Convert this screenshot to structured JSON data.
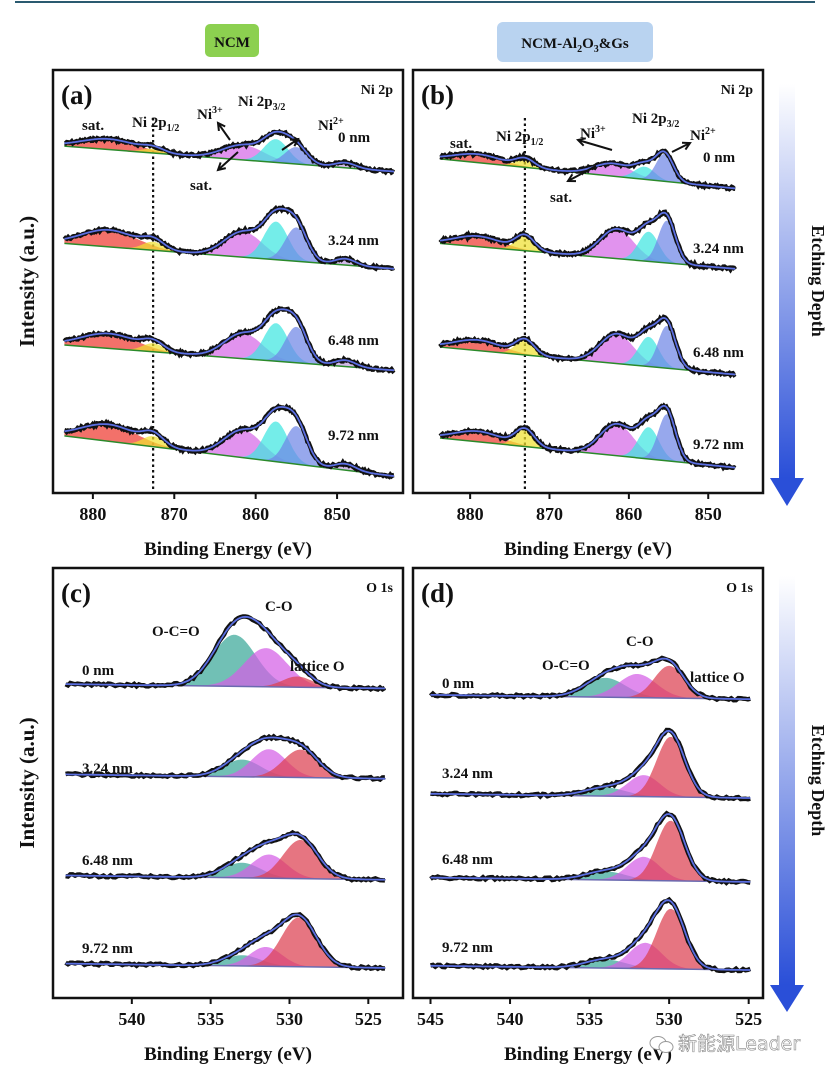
{
  "headers": {
    "left": "NCM",
    "right_main": "NCM-Al",
    "right_sub1": "2",
    "right_mid": "O",
    "right_sub2": "3",
    "right_tail": "&Gs",
    "left_color": "#8cd050",
    "right_color": "#b9d3f0"
  },
  "etching_label": "Etching Depth",
  "arrow_color": "#2a4fd8",
  "watermark": {
    "text": "新能源Leader",
    "icon": "wechat-icon"
  },
  "chart_data": [
    {
      "type": "line",
      "panel_label": "(a)",
      "element": "Ni 2p",
      "xlabel": "Binding Energy (eV)",
      "ylabel": "Intensity (a.u.)",
      "xlim": [
        884.9,
        841.9
      ],
      "ylim": [
        0,
        100
      ],
      "xticks": [
        "880",
        "870",
        "860",
        "850"
      ],
      "xtick_values": [
        880,
        870,
        860,
        850
      ],
      "reference_line": 872.6,
      "annotations": [
        {
          "text": "sat."
        },
        {
          "text": "Ni 2p",
          "sub": "1/2"
        },
        {
          "text": "Ni",
          "sup": "3+"
        },
        {
          "text": "Ni 2p",
          "sub": "3/2"
        },
        {
          "text": "Ni",
          "sup": "2+"
        },
        {
          "text": "sat."
        }
      ],
      "components": {
        "sat1": "#ee3a30",
        "p12": "#f0e030",
        "sat2": "#d66ae8",
        "ni3": "#3ee6e0",
        "ni2": "#6f86e6",
        "small": "#c0a0e0"
      },
      "spectra": [
        {
          "label": "0 nm",
          "range": [
            883.5,
            843
          ],
          "baseline": [
            82,
            76
          ],
          "peaks": [
            {
              "c": 878,
              "f": 8,
              "h": 2.5,
              "comp": "sat1"
            },
            {
              "c": 872.6,
              "f": 3,
              "h": 1,
              "comp": "p12"
            },
            {
              "c": 861.5,
              "f": 6,
              "h": 3.5,
              "comp": "sat2"
            },
            {
              "c": 857.5,
              "f": 3.5,
              "h": 5.5,
              "comp": "ni3"
            },
            {
              "c": 855,
              "f": 3.2,
              "h": 4,
              "comp": "ni2"
            },
            {
              "c": 849,
              "f": 3,
              "h": 1.2,
              "comp": "small"
            }
          ]
        },
        {
          "label": "3.24 nm",
          "range": [
            883.5,
            843
          ],
          "baseline": [
            59,
            53
          ],
          "peaks": [
            {
              "c": 878,
              "f": 8,
              "h": 4,
              "comp": "sat1"
            },
            {
              "c": 872.6,
              "f": 3,
              "h": 2,
              "comp": "p12"
            },
            {
              "c": 861.5,
              "f": 5.5,
              "h": 6,
              "comp": "sat2"
            },
            {
              "c": 857.5,
              "f": 3.5,
              "h": 9,
              "comp": "ni3"
            },
            {
              "c": 855,
              "f": 3.2,
              "h": 8,
              "comp": "ni2"
            },
            {
              "c": 849,
              "f": 3,
              "h": 1.5,
              "comp": "small"
            }
          ]
        },
        {
          "label": "6.48 nm",
          "range": [
            883.5,
            843
          ],
          "baseline": [
            35,
            29
          ],
          "peaks": [
            {
              "c": 878,
              "f": 8,
              "h": 3.5,
              "comp": "sat1"
            },
            {
              "c": 872.6,
              "f": 3,
              "h": 2,
              "comp": "p12"
            },
            {
              "c": 861.5,
              "f": 5.5,
              "h": 6,
              "comp": "sat2"
            },
            {
              "c": 857.5,
              "f": 3.5,
              "h": 9,
              "comp": "ni3"
            },
            {
              "c": 855,
              "f": 3.2,
              "h": 8.5,
              "comp": "ni2"
            },
            {
              "c": 849,
              "f": 3,
              "h": 1.5,
              "comp": "small"
            }
          ]
        },
        {
          "label": "9.72 nm",
          "range": [
            883.5,
            843
          ],
          "baseline": [
            13.5,
            4
          ],
          "peaks": [
            {
              "c": 878,
              "f": 8,
              "h": 4,
              "comp": "sat1"
            },
            {
              "c": 872.6,
              "f": 3,
              "h": 2.5,
              "comp": "p12"
            },
            {
              "c": 861.5,
              "f": 5.5,
              "h": 6.5,
              "comp": "sat2"
            },
            {
              "c": 857.5,
              "f": 3.5,
              "h": 9.5,
              "comp": "ni3"
            },
            {
              "c": 855,
              "f": 3.2,
              "h": 9,
              "comp": "ni2"
            },
            {
              "c": 849,
              "f": 3,
              "h": 1.5,
              "comp": "small"
            }
          ]
        }
      ]
    },
    {
      "type": "line",
      "panel_label": "(b)",
      "element": "Ni 2p",
      "xlabel": "Binding Energy (eV)",
      "ylabel": "",
      "xlim": [
        887.2,
        843.1
      ],
      "ylim": [
        0,
        100
      ],
      "xticks": [
        "880",
        "870",
        "860",
        "850"
      ],
      "xtick_values": [
        880,
        870,
        860,
        850
      ],
      "reference_line": 873.1,
      "annotations": [
        {
          "text": "sat."
        },
        {
          "text": "Ni 2p",
          "sub": "1/2"
        },
        {
          "text": "Ni",
          "sup": "3+"
        },
        {
          "text": "Ni 2p",
          "sub": "3/2"
        },
        {
          "text": "Ni",
          "sup": "2+"
        },
        {
          "text": "sat."
        }
      ],
      "components": {
        "sat1": "#ee3a30",
        "p12": "#f0e030",
        "sat2": "#d66ae8",
        "ni3": "#3ee6e0",
        "ni2": "#6f86e6",
        "small": "#c0a0e0"
      },
      "spectra": [
        {
          "label": "0 nm",
          "range": [
            883.8,
            846.6
          ],
          "baseline": [
            79,
            72
          ],
          "peaks": [
            {
              "c": 879,
              "f": 7,
              "h": 2,
              "comp": "sat1"
            },
            {
              "c": 873.1,
              "f": 2.8,
              "h": 2,
              "comp": "p12"
            },
            {
              "c": 862,
              "f": 5.5,
              "h": 3,
              "comp": "sat2"
            },
            {
              "c": 858,
              "f": 3,
              "h": 3,
              "comp": "ni3"
            },
            {
              "c": 855.5,
              "f": 2.6,
              "h": 6.5,
              "comp": "ni2"
            }
          ]
        },
        {
          "label": "3.24 nm",
          "range": [
            883.8,
            846.6
          ],
          "baseline": [
            59,
            53
          ],
          "peaks": [
            {
              "c": 879,
              "f": 7,
              "h": 2.5,
              "comp": "sat1"
            },
            {
              "c": 873.1,
              "f": 2.8,
              "h": 3.5,
              "comp": "p12"
            },
            {
              "c": 861.5,
              "f": 5,
              "h": 7,
              "comp": "sat2"
            },
            {
              "c": 857.5,
              "f": 3,
              "h": 7,
              "comp": "ni3"
            },
            {
              "c": 855.2,
              "f": 2.6,
              "h": 10,
              "comp": "ni2"
            }
          ]
        },
        {
          "label": "6.48 nm",
          "range": [
            883.8,
            846.6
          ],
          "baseline": [
            34.5,
            28
          ],
          "peaks": [
            {
              "c": 879,
              "f": 7,
              "h": 2.5,
              "comp": "sat1"
            },
            {
              "c": 873.1,
              "f": 2.8,
              "h": 3.5,
              "comp": "p12"
            },
            {
              "c": 861.5,
              "f": 5,
              "h": 7,
              "comp": "sat2"
            },
            {
              "c": 857.5,
              "f": 3,
              "h": 7,
              "comp": "ni3"
            },
            {
              "c": 855.2,
              "f": 2.6,
              "h": 10,
              "comp": "ni2"
            }
          ]
        },
        {
          "label": "9.72 nm",
          "range": [
            883.8,
            846.6
          ],
          "baseline": [
            13,
            6
          ],
          "peaks": [
            {
              "c": 879,
              "f": 7,
              "h": 2.5,
              "comp": "sat1"
            },
            {
              "c": 873.1,
              "f": 2.8,
              "h": 4,
              "comp": "p12"
            },
            {
              "c": 861.5,
              "f": 5,
              "h": 7.5,
              "comp": "sat2"
            },
            {
              "c": 857.5,
              "f": 3,
              "h": 7.5,
              "comp": "ni3"
            },
            {
              "c": 855.2,
              "f": 2.6,
              "h": 11,
              "comp": "ni2"
            }
          ]
        }
      ]
    },
    {
      "type": "line",
      "panel_label": "(c)",
      "element": "O 1s",
      "xlabel": "Binding Energy (eV)",
      "ylabel": "Intensity (a.u.)",
      "xlim": [
        545,
        522.8
      ],
      "ylim": [
        0,
        100
      ],
      "xticks": [
        "540",
        "535",
        "530",
        "525"
      ],
      "xtick_values": [
        540,
        535,
        530,
        525
      ],
      "annotations": [
        {
          "text": "O-C=O"
        },
        {
          "text": "C-O"
        },
        {
          "text": "lattice O"
        }
      ],
      "components": {
        "ococ": "#3aa898",
        "co": "#d45ee6",
        "lat": "#dc4050"
      },
      "spectra": [
        {
          "label": "0 nm",
          "range": [
            544.2,
            523.9
          ],
          "baseline": [
            73,
            72
          ],
          "peaks": [
            {
              "c": 533.5,
              "f": 3.2,
              "h": 12,
              "comp": "ococ"
            },
            {
              "c": 531.5,
              "f": 3.2,
              "h": 9,
              "comp": "co"
            },
            {
              "c": 529.5,
              "f": 2.2,
              "h": 2.5,
              "comp": "lat"
            }
          ]
        },
        {
          "label": "3.24 nm",
          "range": [
            544.2,
            523.9
          ],
          "baseline": [
            52,
            51
          ],
          "peaks": [
            {
              "c": 533,
              "f": 2.8,
              "h": 4,
              "comp": "ococ"
            },
            {
              "c": 531.3,
              "f": 2.6,
              "h": 6.5,
              "comp": "co"
            },
            {
              "c": 529.3,
              "f": 2.6,
              "h": 6.5,
              "comp": "lat"
            }
          ]
        },
        {
          "label": "6.48 nm",
          "range": [
            544.2,
            523.9
          ],
          "baseline": [
            28.5,
            27.5
          ],
          "peaks": [
            {
              "c": 533,
              "f": 2.8,
              "h": 3.5,
              "comp": "ococ"
            },
            {
              "c": 531.3,
              "f": 2.6,
              "h": 5.5,
              "comp": "co"
            },
            {
              "c": 529.3,
              "f": 2.6,
              "h": 9,
              "comp": "lat"
            }
          ]
        },
        {
          "label": "9.72 nm",
          "range": [
            544.2,
            523.9
          ],
          "baseline": [
            8,
            7
          ],
          "peaks": [
            {
              "c": 533,
              "f": 2.8,
              "h": 2.5,
              "comp": "ococ"
            },
            {
              "c": 531.5,
              "f": 2.4,
              "h": 4.5,
              "comp": "co"
            },
            {
              "c": 529.4,
              "f": 2.6,
              "h": 11.5,
              "comp": "lat"
            }
          ]
        }
      ]
    },
    {
      "type": "line",
      "panel_label": "(d)",
      "element": "O 1s",
      "xlabel": "Binding Energy (eV)",
      "ylabel": "",
      "xlim": [
        546.1,
        524.1
      ],
      "ylim": [
        0,
        100
      ],
      "xticks": [
        "545",
        "540",
        "535",
        "530",
        "525"
      ],
      "xtick_values": [
        545,
        540,
        535,
        530,
        525
      ],
      "annotations": [
        {
          "text": "O-C=O"
        },
        {
          "text": "C-O"
        },
        {
          "text": "lattice O"
        }
      ],
      "components": {
        "ococ": "#3aa898",
        "co": "#d45ee6",
        "lat": "#dc4050"
      },
      "spectra": [
        {
          "label": "0 nm",
          "range": [
            545,
            524.9
          ],
          "baseline": [
            70.5,
            69.5
          ],
          "peaks": [
            {
              "c": 534,
              "f": 3,
              "h": 4.5,
              "comp": "ococ"
            },
            {
              "c": 532,
              "f": 2.8,
              "h": 5.5,
              "comp": "co"
            },
            {
              "c": 530,
              "f": 2.2,
              "h": 7.5,
              "comp": "lat"
            }
          ]
        },
        {
          "label": "3.24 nm",
          "range": [
            545,
            524.9
          ],
          "baseline": [
            47.5,
            46.5
          ],
          "peaks": [
            {
              "c": 534,
              "f": 3,
              "h": 2,
              "comp": "ococ"
            },
            {
              "c": 531.6,
              "f": 2.4,
              "h": 5,
              "comp": "co"
            },
            {
              "c": 529.9,
              "f": 2.1,
              "h": 14,
              "comp": "lat"
            }
          ]
        },
        {
          "label": "6.48 nm",
          "range": [
            545,
            524.9
          ],
          "baseline": [
            28,
            27
          ],
          "peaks": [
            {
              "c": 534,
              "f": 3,
              "h": 2,
              "comp": "ococ"
            },
            {
              "c": 531.6,
              "f": 2.4,
              "h": 5.5,
              "comp": "co"
            },
            {
              "c": 529.9,
              "f": 2.1,
              "h": 14,
              "comp": "lat"
            }
          ]
        },
        {
          "label": "9.72 nm",
          "range": [
            545,
            524.9
          ],
          "baseline": [
            7.5,
            6.5
          ],
          "peaks": [
            {
              "c": 534,
              "f": 3,
              "h": 2,
              "comp": "ococ"
            },
            {
              "c": 531.5,
              "f": 2.4,
              "h": 6,
              "comp": "co"
            },
            {
              "c": 529.9,
              "f": 2.1,
              "h": 14,
              "comp": "lat"
            }
          ]
        }
      ]
    }
  ]
}
